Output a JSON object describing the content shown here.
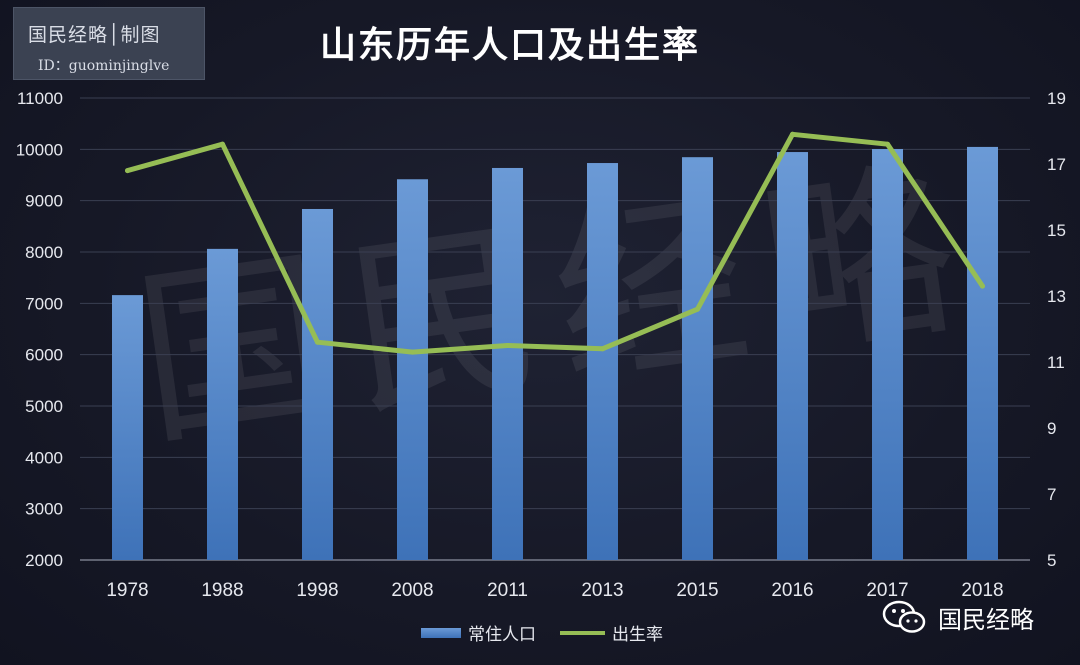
{
  "brand": {
    "title": "国民经略│制图",
    "id_line": "ID：guominjinglve"
  },
  "watermark": "国民经略",
  "wechat_label": "国民经略",
  "colors": {
    "bar": "#4a7fc4",
    "bar_light": "#6b9ad6",
    "line": "#96bd55",
    "axis_text": "#e6e8ee"
  },
  "chart_data": {
    "type": "bar",
    "title": "山东历年人口及出生率",
    "categories": [
      "1978",
      "1988",
      "1998",
      "2008",
      "2011",
      "2013",
      "2015",
      "2016",
      "2017",
      "2018"
    ],
    "series": [
      {
        "name": "常住人口",
        "type": "bar",
        "axis": "left",
        "values": [
          7160,
          8061,
          8838,
          9417,
          9637,
          9733,
          9847,
          9947,
          10006,
          10047
        ]
      },
      {
        "name": "出生率",
        "type": "line",
        "axis": "right",
        "values": [
          16.8,
          17.6,
          11.6,
          11.3,
          11.5,
          11.4,
          12.6,
          17.9,
          17.6,
          13.3
        ]
      }
    ],
    "y_left": {
      "min": 2000,
      "max": 11000,
      "ticks": [
        2000,
        3000,
        4000,
        5000,
        6000,
        7000,
        8000,
        9000,
        10000,
        11000
      ]
    },
    "y_right": {
      "min": 5,
      "max": 19,
      "ticks": [
        5,
        7,
        9,
        11,
        13,
        15,
        17,
        19
      ]
    },
    "grid": true,
    "legend": "bottom-center"
  }
}
